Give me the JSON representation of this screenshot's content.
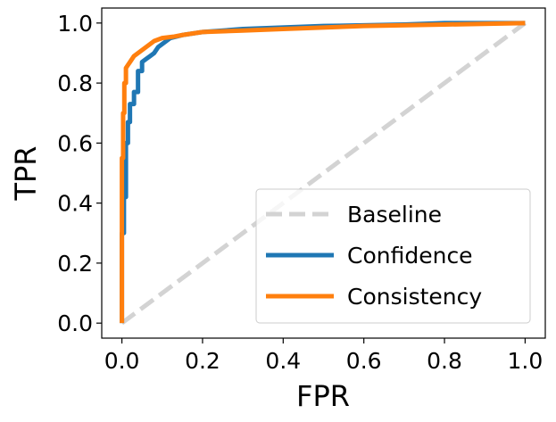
{
  "chart_data": {
    "type": "line",
    "title": "",
    "xlabel": "FPR",
    "ylabel": "TPR",
    "xlim": [
      -0.05,
      1.05
    ],
    "ylim": [
      -0.05,
      1.05
    ],
    "xticks": [
      "0.0",
      "0.2",
      "0.4",
      "0.6",
      "0.8",
      "1.0"
    ],
    "xtick_values": [
      0.0,
      0.2,
      0.4,
      0.6,
      0.8,
      1.0
    ],
    "yticks": [
      "0.0",
      "0.2",
      "0.4",
      "0.6",
      "0.8",
      "1.0"
    ],
    "ytick_values": [
      0.0,
      0.2,
      0.4,
      0.6,
      0.8,
      1.0
    ],
    "grid": false,
    "legend_position": "lower-right",
    "series": [
      {
        "name": "Baseline",
        "style": "dashed",
        "color": "#d3d3d3",
        "x": [
          0.0,
          1.0
        ],
        "y": [
          0.0,
          1.0
        ]
      },
      {
        "name": "Confidence",
        "style": "solid",
        "color": "#1f77b4",
        "x": [
          0.0,
          0.0,
          0.005,
          0.005,
          0.01,
          0.01,
          0.015,
          0.015,
          0.02,
          0.02,
          0.03,
          0.03,
          0.04,
          0.04,
          0.05,
          0.05,
          0.06,
          0.07,
          0.08,
          0.09,
          0.1,
          0.12,
          0.15,
          0.2,
          0.3,
          0.5,
          0.7,
          0.8,
          1.0
        ],
        "y": [
          0.0,
          0.3,
          0.3,
          0.42,
          0.42,
          0.6,
          0.6,
          0.67,
          0.67,
          0.73,
          0.73,
          0.77,
          0.77,
          0.84,
          0.84,
          0.87,
          0.88,
          0.89,
          0.9,
          0.92,
          0.93,
          0.95,
          0.96,
          0.97,
          0.98,
          0.99,
          0.995,
          1.0,
          1.0
        ]
      },
      {
        "name": "Consistency",
        "style": "solid",
        "color": "#ff7f0e",
        "x": [
          0.0,
          0.0,
          0.003,
          0.003,
          0.006,
          0.006,
          0.01,
          0.01,
          0.015,
          0.02,
          0.03,
          0.04,
          0.06,
          0.08,
          0.1,
          0.13,
          0.15,
          0.2,
          0.3,
          0.4,
          0.6,
          0.8,
          1.0
        ],
        "y": [
          0.0,
          0.55,
          0.55,
          0.7,
          0.7,
          0.8,
          0.8,
          0.85,
          0.86,
          0.87,
          0.89,
          0.9,
          0.92,
          0.94,
          0.95,
          0.955,
          0.96,
          0.97,
          0.975,
          0.98,
          0.99,
          0.995,
          1.0
        ]
      }
    ]
  }
}
